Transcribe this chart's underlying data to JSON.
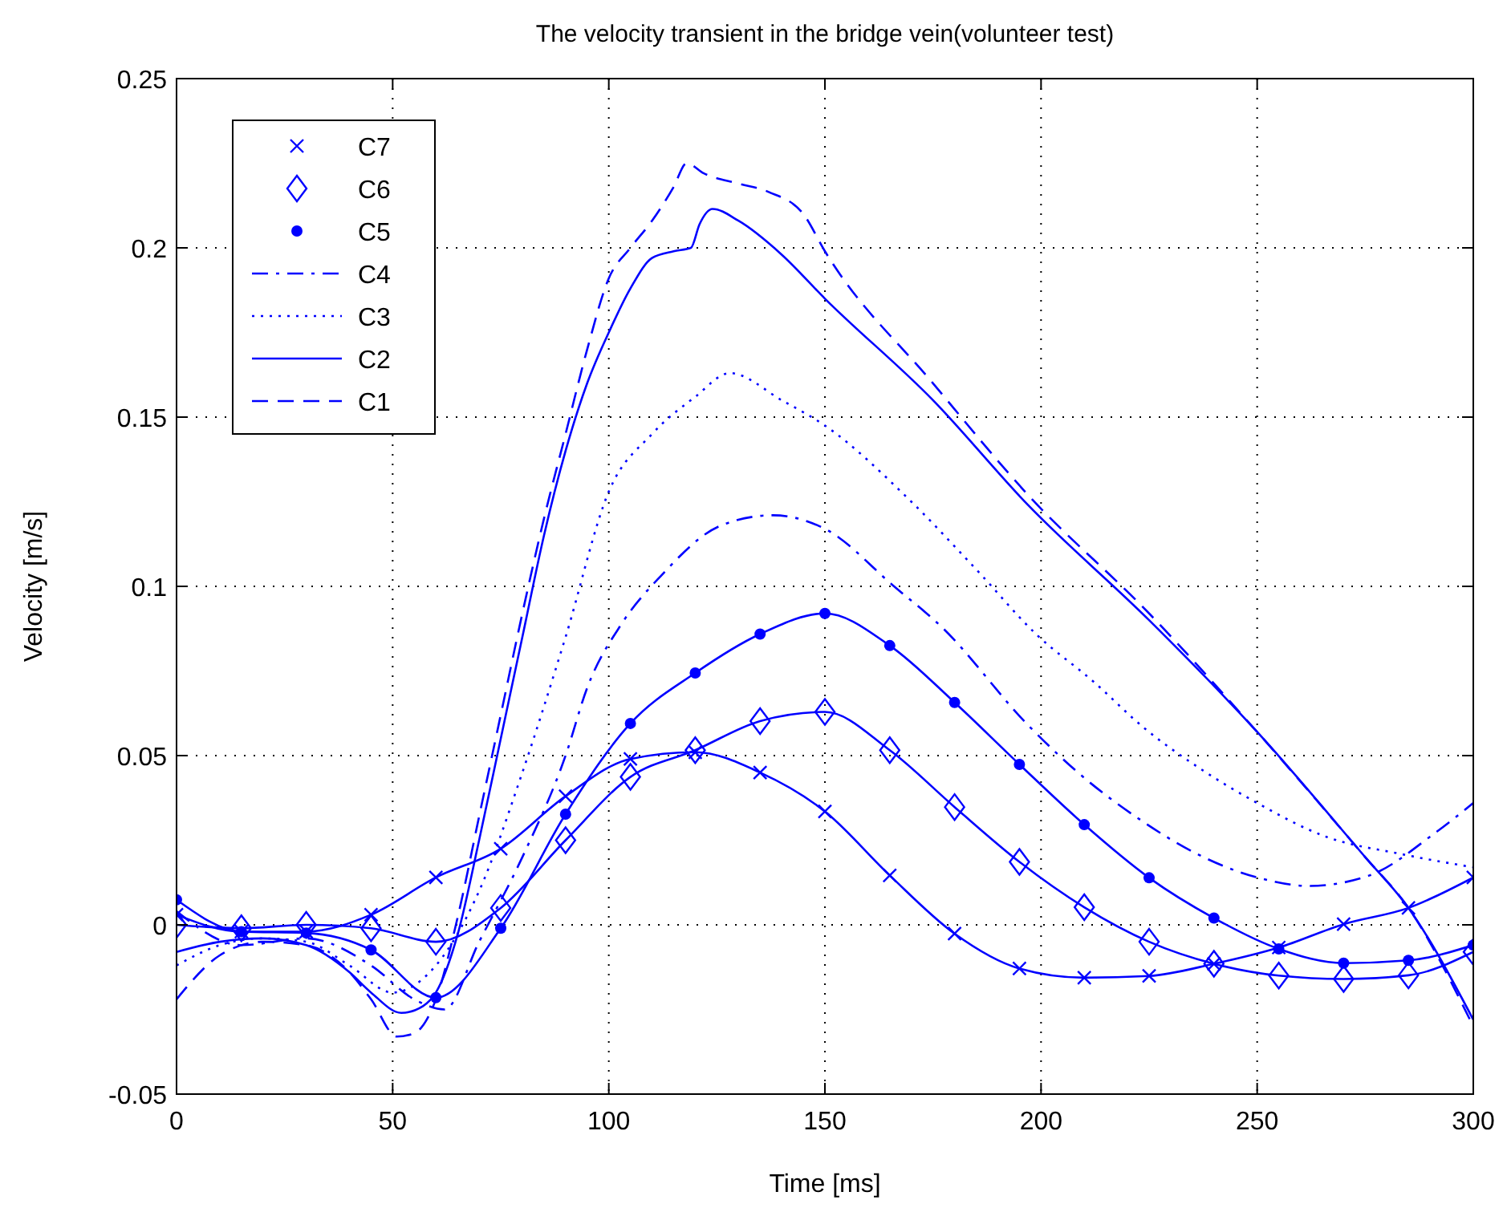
{
  "chart_data": {
    "type": "line",
    "title": "The velocity transient in the bridge vein(volunteer test)",
    "xlabel": "Time [ms]",
    "ylabel": "Velocity [m/s]",
    "xlim": [
      0,
      300
    ],
    "xticks": [
      0,
      50,
      100,
      150,
      200,
      250,
      300
    ],
    "ylim": [
      -0.05,
      0.25
    ],
    "yticks": [
      -0.05,
      0,
      0.05,
      0.1,
      0.15,
      0.2,
      0.25
    ],
    "grid": true,
    "legend": "top left",
    "series": [
      {
        "name": "C7",
        "color": "#0000ff",
        "marker": "cross",
        "x": [
          0,
          15,
          30,
          45,
          60,
          75,
          90,
          105,
          120,
          135,
          150,
          165,
          180,
          195,
          210,
          225,
          240,
          255,
          270,
          285,
          300
        ],
        "values": [
          0.003,
          -0.002,
          -0.002,
          0.003,
          0.014,
          0.0225,
          0.038,
          0.049,
          0.051,
          0.045,
          0.0335,
          0.0146,
          -0.0026,
          -0.0129,
          -0.0156,
          -0.0151,
          -0.0115,
          -0.0067,
          0.0002,
          0.005,
          0.014
        ]
      },
      {
        "name": "C6",
        "color": "#0000ff",
        "marker": "diamond",
        "x": [
          0,
          15,
          30,
          45,
          60,
          75,
          90,
          105,
          120,
          135,
          150,
          165,
          180,
          195,
          210,
          225,
          240,
          255,
          270,
          285,
          300
        ],
        "values": [
          0,
          -0.001,
          0,
          -0.001,
          -0.005,
          0.005,
          0.025,
          0.0437,
          0.0516,
          0.0602,
          0.0629,
          0.0516,
          0.0348,
          0.0186,
          0.0052,
          -0.005,
          -0.0115,
          -0.015,
          -0.016,
          -0.0149,
          -0.008
        ]
      },
      {
        "name": "C5",
        "color": "#0000ff",
        "marker": "circle",
        "x": [
          0,
          15,
          30,
          45,
          60,
          75,
          90,
          105,
          120,
          135,
          150,
          165,
          180,
          195,
          210,
          225,
          240,
          255,
          270,
          285,
          300
        ],
        "values": [
          0.0074,
          -0.002,
          -0.0024,
          -0.0074,
          -0.0215,
          -0.001,
          0.0327,
          0.0595,
          0.0744,
          0.0859,
          0.092,
          0.0825,
          0.0657,
          0.0474,
          0.0296,
          0.0139,
          0.002,
          -0.0071,
          -0.0113,
          -0.0105,
          -0.006
        ]
      },
      {
        "name": "C4",
        "color": "#0000ff",
        "line_style": "dashdot",
        "x": [
          0,
          15,
          30,
          45,
          55,
          62,
          70,
          80,
          90,
          95,
          103,
          112,
          126,
          138,
          150,
          166,
          177,
          197,
          209,
          223,
          236,
          250,
          262,
          276,
          291,
          300
        ],
        "values": [
          0.004,
          -0.006,
          -0.004,
          -0.012,
          -0.022,
          -0.025,
          -0.005,
          0.02,
          0.05,
          0.07,
          0.089,
          0.103,
          0.118,
          0.121,
          0.117,
          0.1,
          0.088,
          0.059,
          0.0445,
          0.031,
          0.021,
          0.014,
          0.0115,
          0.0146,
          0.027,
          0.036
        ]
      },
      {
        "name": "C3",
        "color": "#0000ff",
        "line_style": "dotted",
        "x": [
          0,
          10,
          20,
          30,
          40,
          50,
          60,
          70,
          80,
          90,
          100,
          110,
          120,
          128,
          140,
          150,
          170,
          185,
          199,
          212,
          224,
          237,
          250,
          266,
          283,
          300
        ],
        "values": [
          -0.012,
          -0.006,
          -0.004,
          -0.005,
          -0.012,
          -0.02,
          -0.012,
          0.01,
          0.045,
          0.085,
          0.128,
          0.145,
          0.156,
          0.163,
          0.155,
          0.1475,
          0.125,
          0.105,
          0.0857,
          0.072,
          0.058,
          0.046,
          0.036,
          0.026,
          0.021,
          0.017
        ]
      },
      {
        "name": "C2",
        "color": "#0000ff",
        "line_style": "solid",
        "x": [
          0,
          10,
          20,
          30,
          40,
          45,
          52,
          57,
          60,
          65,
          70,
          75,
          80,
          85,
          90,
          95,
          100,
          105,
          110,
          115,
          119,
          121,
          124,
          130,
          140,
          150,
          175,
          197,
          225,
          250,
          275,
          285,
          300
        ],
        "values": [
          -0.008,
          -0.005,
          -0.004,
          -0.006,
          -0.014,
          -0.02,
          -0.026,
          -0.024,
          -0.02,
          -0.003,
          0.025,
          0.055,
          0.085,
          0.115,
          0.14,
          0.16,
          0.175,
          0.188,
          0.197,
          0.199,
          0.2,
          0.207,
          0.2115,
          0.208,
          0.198,
          0.185,
          0.155,
          0.124,
          0.09,
          0.057,
          0.02,
          0.005,
          -0.028
        ]
      },
      {
        "name": "C1",
        "color": "#0000ff",
        "line_style": "dashed",
        "x": [
          0,
          10,
          20,
          30,
          40,
          45,
          51,
          55,
          60,
          65,
          70,
          75,
          80,
          85,
          90,
          95,
          100,
          105,
          110,
          115,
          118,
          122,
          130,
          137,
          145,
          150,
          175,
          197,
          225,
          250,
          275,
          285,
          300
        ],
        "values": [
          -0.022,
          -0.009,
          -0.005,
          -0.006,
          -0.014,
          -0.022,
          -0.033,
          -0.032,
          -0.022,
          0.002,
          0.032,
          0.062,
          0.092,
          0.12,
          0.145,
          0.17,
          0.191,
          0.2,
          0.208,
          0.218,
          0.225,
          0.222,
          0.219,
          0.2165,
          0.21,
          0.199,
          0.16,
          0.127,
          0.092,
          0.057,
          0.02,
          0.005,
          -0.03
        ]
      }
    ]
  }
}
